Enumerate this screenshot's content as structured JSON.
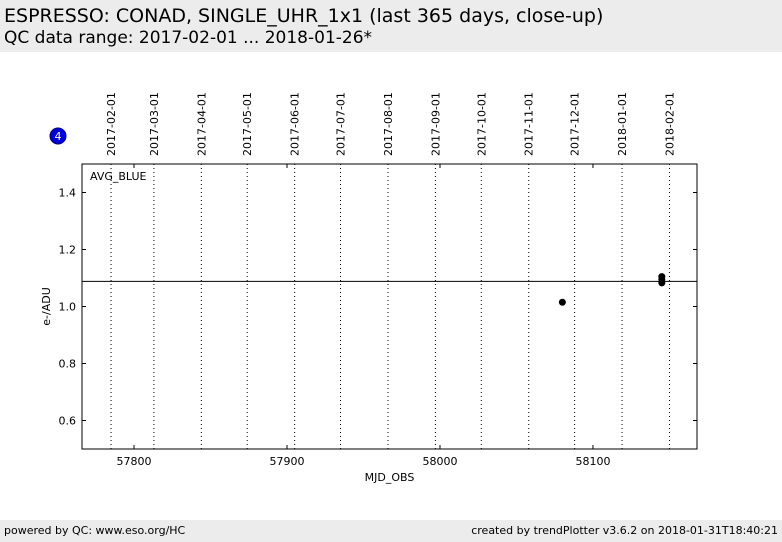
{
  "header": {
    "title": "ESPRESSO: CONAD, SINGLE_UHR_1x1 (last 365 days, close-up)",
    "subtitle": "QC data range: 2017-02-01 ... 2018-01-26*"
  },
  "footer": {
    "left": "powered by QC: www.eso.org/HC",
    "right": "created by trendPlotter v3.6.2 on 2018-01-31T18:40:21"
  },
  "chart_data": {
    "type": "scatter",
    "panel_label": "AVG_BLUE",
    "badge": 4,
    "x_label": "MJD_OBS",
    "y_label": "e-/ADU",
    "xlim": [
      57766,
      58168
    ],
    "xticks": [
      57800,
      57900,
      58000,
      58100
    ],
    "ylim": [
      0.5,
      1.5
    ],
    "yticks": [
      0.6,
      0.8,
      1.0,
      1.2,
      1.4
    ],
    "ref_line": 1.088,
    "date_markers": [
      {
        "value": 57785,
        "label": "2017-02-01"
      },
      {
        "value": 57813,
        "label": "2017-03-01"
      },
      {
        "value": 57844,
        "label": "2017-04-01"
      },
      {
        "value": 57874,
        "label": "2017-05-01"
      },
      {
        "value": 57905,
        "label": "2017-06-01"
      },
      {
        "value": 57935,
        "label": "2017-07-01"
      },
      {
        "value": 57966,
        "label": "2017-08-01"
      },
      {
        "value": 57997,
        "label": "2017-09-01"
      },
      {
        "value": 58027,
        "label": "2017-10-01"
      },
      {
        "value": 58058,
        "label": "2017-11-01"
      },
      {
        "value": 58088,
        "label": "2017-12-01"
      },
      {
        "value": 58119,
        "label": "2018-01-01"
      },
      {
        "value": 58150,
        "label": "2018-02-01"
      }
    ],
    "series": [
      {
        "color": "#000000",
        "x": [
          58080,
          58145,
          58145,
          58145
        ],
        "values": [
          1.015,
          1.105,
          1.095,
          1.083
        ]
      }
    ]
  }
}
